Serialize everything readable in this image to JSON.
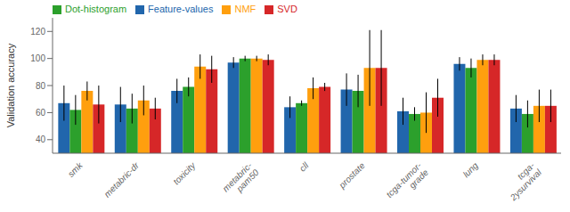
{
  "chart_data": {
    "type": "bar",
    "categories": [
      "smk",
      "metabric-dr",
      "toxicity",
      "metabric-\npam50",
      "cll",
      "prostate",
      "tcga-tumor-\ngrade",
      "lung",
      "tcga-\n2ysurvival"
    ],
    "series": [
      {
        "name": "Feature-values",
        "color": "#2166ac",
        "values": [
          67,
          66,
          76,
          97,
          64,
          77,
          61,
          96,
          63
        ],
        "errors": [
          13,
          13,
          9,
          4,
          8,
          12,
          10,
          5,
          10
        ]
      },
      {
        "name": "Dot-histogram",
        "color": "#2ca02c",
        "values": [
          62,
          63,
          79,
          100,
          67,
          76,
          59,
          93,
          59
        ],
        "errors": [
          11,
          11,
          7,
          2,
          2,
          12,
          5,
          7,
          10
        ]
      },
      {
        "name": "NMF",
        "color": "#ff9f0e",
        "values": [
          76,
          69,
          94,
          100,
          78,
          93,
          60,
          99,
          65
        ],
        "errors": [
          7,
          11,
          9,
          2,
          8,
          28,
          15,
          4,
          12
        ]
      },
      {
        "name": "SVD",
        "color": "#d62728",
        "values": [
          66,
          63,
          92,
          99,
          79,
          93,
          71,
          99,
          65
        ],
        "errors": [
          14,
          8,
          10,
          4,
          3,
          28,
          14,
          4,
          12
        ]
      }
    ],
    "ylabel": "Validation accuracy",
    "ylim": [
      30,
      130
    ],
    "yticks": [
      40,
      60,
      80,
      100,
      120
    ],
    "grid": false,
    "legend": "upper left"
  }
}
